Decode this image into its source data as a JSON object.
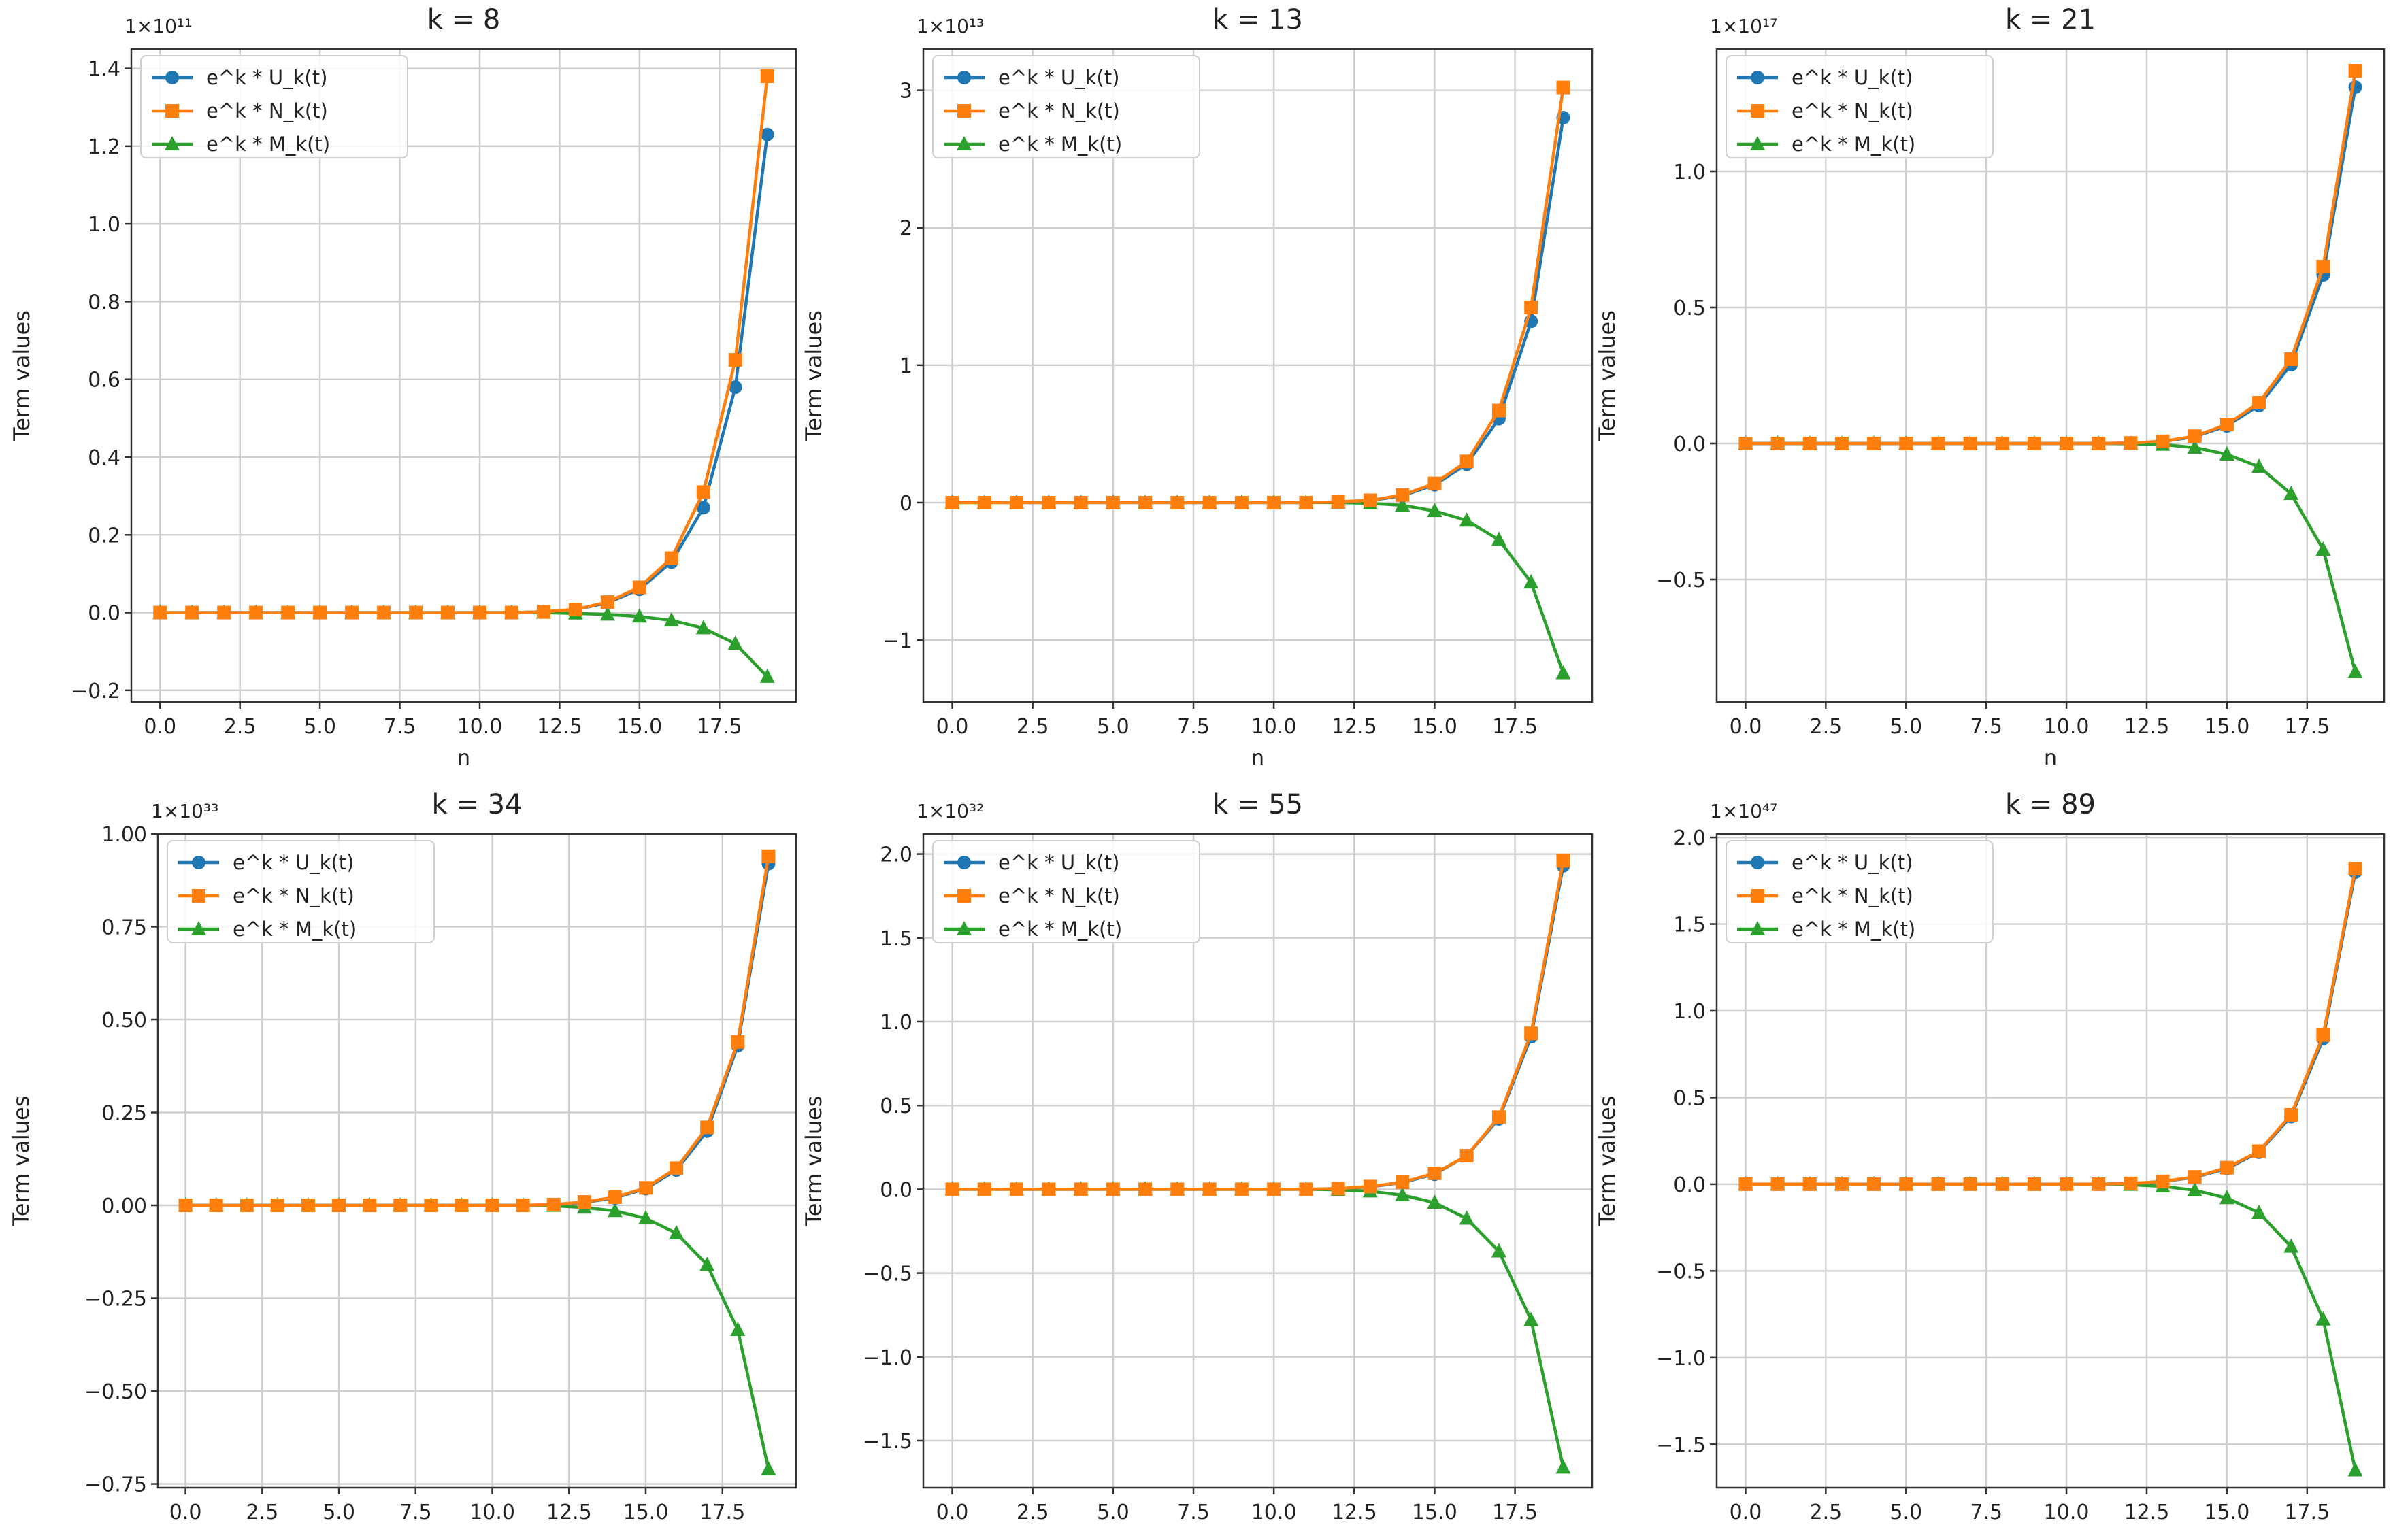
{
  "figure": {
    "ylabel": "Term values",
    "xlabel": "n",
    "legend": [
      "e^k * U_k(t)",
      "e^k * N_k(t)",
      "e^k * M_k(t)"
    ],
    "colors": {
      "U": "#1f77b4",
      "N": "#ff7f0e",
      "M": "#2ca02c"
    }
  },
  "chart_data": [
    {
      "type": "line",
      "title": "k = 8",
      "multiplier": "1×10¹¹",
      "xlabel": "n",
      "ylabel": "Term values",
      "xlim": [
        -0.9,
        19.9
      ],
      "ylim": [
        -0.23,
        1.45
      ],
      "xticks": [
        "0.0",
        "2.5",
        "5.0",
        "7.5",
        "10.0",
        "12.5",
        "15.0",
        "17.5"
      ],
      "yticks": [
        -0.2,
        0.0,
        0.2,
        0.4,
        0.6,
        0.8,
        1.0,
        1.2,
        1.4
      ],
      "ytick_labels": [
        "−0.2",
        "0.0",
        "0.2",
        "0.4",
        "0.6",
        "0.8",
        "1.0",
        "1.2",
        "1.4"
      ],
      "x": [
        0,
        1,
        2,
        3,
        4,
        5,
        6,
        7,
        8,
        9,
        10,
        11,
        12,
        13,
        14,
        15,
        16,
        17,
        18,
        19
      ],
      "series": [
        {
          "name": "e^k * U_k(t)",
          "values": [
            0,
            0,
            0,
            0,
            0,
            0,
            0,
            0,
            0,
            0,
            0,
            0,
            0.002,
            0.008,
            0.025,
            0.06,
            0.13,
            0.27,
            0.58,
            1.23
          ]
        },
        {
          "name": "e^k * N_k(t)",
          "values": [
            0,
            0,
            0,
            0,
            0,
            0,
            0,
            0,
            0,
            0,
            0,
            0,
            0.002,
            0.008,
            0.027,
            0.065,
            0.14,
            0.31,
            0.65,
            1.38
          ]
        },
        {
          "name": "e^k * M_k(t)",
          "values": [
            0,
            0,
            0,
            0,
            0,
            0,
            0,
            0,
            0,
            0,
            0,
            0,
            0,
            -0.002,
            -0.005,
            -0.01,
            -0.02,
            -0.04,
            -0.08,
            -0.165
          ]
        }
      ]
    },
    {
      "type": "line",
      "title": "k = 13",
      "multiplier": "1×10¹³",
      "xlabel": "n",
      "ylabel": "Term values",
      "xlim": [
        -0.9,
        19.9
      ],
      "ylim": [
        -1.45,
        3.3
      ],
      "xticks": [
        "0.0",
        "2.5",
        "5.0",
        "7.5",
        "10.0",
        "12.5",
        "15.0",
        "17.5"
      ],
      "yticks": [
        -1,
        0,
        1,
        2,
        3
      ],
      "ytick_labels": [
        "−1",
        "0",
        "1",
        "2",
        "3"
      ],
      "x": [
        0,
        1,
        2,
        3,
        4,
        5,
        6,
        7,
        8,
        9,
        10,
        11,
        12,
        13,
        14,
        15,
        16,
        17,
        18,
        19
      ],
      "series": [
        {
          "name": "e^k * U_k(t)",
          "values": [
            0,
            0,
            0,
            0,
            0,
            0,
            0,
            0,
            0,
            0,
            0,
            0,
            0.005,
            0.015,
            0.05,
            0.13,
            0.28,
            0.61,
            1.32,
            2.8
          ]
        },
        {
          "name": "e^k * N_k(t)",
          "values": [
            0,
            0,
            0,
            0,
            0,
            0,
            0,
            0,
            0,
            0,
            0,
            0,
            0.005,
            0.017,
            0.055,
            0.14,
            0.3,
            0.67,
            1.42,
            3.02
          ]
        },
        {
          "name": "e^k * M_k(t)",
          "values": [
            0,
            0,
            0,
            0,
            0,
            0,
            0,
            0,
            0,
            0,
            0,
            0,
            0,
            -0.005,
            -0.02,
            -0.06,
            -0.13,
            -0.27,
            -0.58,
            -1.24
          ]
        }
      ]
    },
    {
      "type": "line",
      "title": "k = 21",
      "multiplier": "1×10¹⁷",
      "xlabel": "n",
      "ylabel": "Term values",
      "xlim": [
        -0.9,
        19.9
      ],
      "ylim": [
        -0.95,
        1.45
      ],
      "xticks": [
        "0.0",
        "2.5",
        "5.0",
        "7.5",
        "10.0",
        "12.5",
        "15.0",
        "17.5"
      ],
      "yticks": [
        -0.5,
        0.0,
        0.5,
        1.0
      ],
      "ytick_labels": [
        "−0.5",
        "0.0",
        "0.5",
        "1.0"
      ],
      "x": [
        0,
        1,
        2,
        3,
        4,
        5,
        6,
        7,
        8,
        9,
        10,
        11,
        12,
        13,
        14,
        15,
        16,
        17,
        18,
        19
      ],
      "series": [
        {
          "name": "e^k * U_k(t)",
          "values": [
            0,
            0,
            0,
            0,
            0,
            0,
            0,
            0,
            0,
            0,
            0,
            0,
            0.002,
            0.007,
            0.025,
            0.065,
            0.14,
            0.29,
            0.62,
            1.31
          ]
        },
        {
          "name": "e^k * N_k(t)",
          "values": [
            0,
            0,
            0,
            0,
            0,
            0,
            0,
            0,
            0,
            0,
            0,
            0,
            0.002,
            0.008,
            0.027,
            0.07,
            0.15,
            0.31,
            0.65,
            1.37
          ]
        },
        {
          "name": "e^k * M_k(t)",
          "values": [
            0,
            0,
            0,
            0,
            0,
            0,
            0,
            0,
            0,
            0,
            0,
            0,
            -0.001,
            -0.004,
            -0.015,
            -0.04,
            -0.085,
            -0.185,
            -0.39,
            -0.84
          ]
        }
      ]
    },
    {
      "type": "line",
      "title": "k = 34",
      "multiplier": "1×10³³",
      "xlabel": "",
      "ylabel": "Term values",
      "xlim": [
        -0.9,
        19.9
      ],
      "ylim": [
        -0.76,
        1.0
      ],
      "xticks": [
        "0.0",
        "2.5",
        "5.0",
        "7.5",
        "10.0",
        "12.5",
        "15.0",
        "17.5"
      ],
      "yticks": [
        -0.75,
        -0.5,
        -0.25,
        0.0,
        0.25,
        0.5,
        0.75,
        1.0
      ],
      "ytick_labels": [
        "−0.75",
        "−0.50",
        "−0.25",
        "0.00",
        "0.25",
        "0.50",
        "0.75",
        "1.00"
      ],
      "x": [
        0,
        1,
        2,
        3,
        4,
        5,
        6,
        7,
        8,
        9,
        10,
        11,
        12,
        13,
        14,
        15,
        16,
        17,
        18,
        19
      ],
      "series": [
        {
          "name": "e^k * U_k(t)",
          "values": [
            0,
            0,
            0,
            0,
            0,
            0,
            0,
            0,
            0,
            0,
            0,
            0,
            0.002,
            0.008,
            0.02,
            0.045,
            0.095,
            0.2,
            0.43,
            0.92
          ]
        },
        {
          "name": "e^k * N_k(t)",
          "values": [
            0,
            0,
            0,
            0,
            0,
            0,
            0,
            0,
            0,
            0,
            0,
            0,
            0.002,
            0.009,
            0.022,
            0.047,
            0.1,
            0.21,
            0.44,
            0.94
          ]
        },
        {
          "name": "e^k * M_k(t)",
          "values": [
            0,
            0,
            0,
            0,
            0,
            0,
            0,
            0,
            0,
            0,
            0,
            0,
            -0.001,
            -0.006,
            -0.015,
            -0.035,
            -0.075,
            -0.16,
            -0.335,
            -0.71
          ]
        }
      ]
    },
    {
      "type": "line",
      "title": "k = 55",
      "multiplier": "1×10³²",
      "xlabel": "",
      "ylabel": "Term values",
      "xlim": [
        -0.9,
        19.9
      ],
      "ylim": [
        -1.78,
        2.12
      ],
      "xticks": [
        "0.0",
        "2.5",
        "5.0",
        "7.5",
        "10.0",
        "12.5",
        "15.0",
        "17.5"
      ],
      "yticks": [
        -1.5,
        -1.0,
        -0.5,
        0.0,
        0.5,
        1.0,
        1.5,
        2.0
      ],
      "ytick_labels": [
        "−1.5",
        "−1.0",
        "−0.5",
        "0.0",
        "0.5",
        "1.0",
        "1.5",
        "2.0"
      ],
      "x": [
        0,
        1,
        2,
        3,
        4,
        5,
        6,
        7,
        8,
        9,
        10,
        11,
        12,
        13,
        14,
        15,
        16,
        17,
        18,
        19
      ],
      "series": [
        {
          "name": "e^k * U_k(t)",
          "values": [
            0,
            0,
            0,
            0,
            0,
            0,
            0,
            0,
            0,
            0,
            0,
            0,
            0.004,
            0.015,
            0.04,
            0.09,
            0.2,
            0.42,
            0.91,
            1.93
          ]
        },
        {
          "name": "e^k * N_k(t)",
          "values": [
            0,
            0,
            0,
            0,
            0,
            0,
            0,
            0,
            0,
            0,
            0,
            0,
            0.004,
            0.016,
            0.042,
            0.095,
            0.2,
            0.43,
            0.93,
            1.96
          ]
        },
        {
          "name": "e^k * M_k(t)",
          "values": [
            0,
            0,
            0,
            0,
            0,
            0,
            0,
            0,
            0,
            0,
            0,
            0,
            -0.003,
            -0.012,
            -0.035,
            -0.08,
            -0.175,
            -0.37,
            -0.78,
            -1.66
          ]
        }
      ]
    },
    {
      "type": "line",
      "title": "k = 89",
      "multiplier": "1×10⁴⁷",
      "xlabel": "",
      "ylabel": "Term values",
      "xlim": [
        -0.9,
        19.9
      ],
      "ylim": [
        -1.75,
        2.02
      ],
      "xticks": [
        "0.0",
        "2.5",
        "5.0",
        "7.5",
        "10.0",
        "12.5",
        "15.0",
        "17.5"
      ],
      "yticks": [
        -1.5,
        -1.0,
        -0.5,
        0.0,
        0.5,
        1.0,
        1.5,
        2.0
      ],
      "ytick_labels": [
        "−1.5",
        "−1.0",
        "−0.5",
        "0.0",
        "0.5",
        "1.0",
        "1.5",
        "2.0"
      ],
      "x": [
        0,
        1,
        2,
        3,
        4,
        5,
        6,
        7,
        8,
        9,
        10,
        11,
        12,
        13,
        14,
        15,
        16,
        17,
        18,
        19
      ],
      "series": [
        {
          "name": "e^k * U_k(t)",
          "values": [
            0,
            0,
            0,
            0,
            0,
            0,
            0,
            0,
            0,
            0,
            0,
            0,
            0.004,
            0.015,
            0.04,
            0.09,
            0.185,
            0.39,
            0.84,
            1.8
          ]
        },
        {
          "name": "e^k * N_k(t)",
          "values": [
            0,
            0,
            0,
            0,
            0,
            0,
            0,
            0,
            0,
            0,
            0,
            0,
            0.004,
            0.016,
            0.042,
            0.095,
            0.19,
            0.4,
            0.86,
            1.82
          ]
        },
        {
          "name": "e^k * M_k(t)",
          "values": [
            0,
            0,
            0,
            0,
            0,
            0,
            0,
            0,
            0,
            0,
            0,
            0,
            -0.003,
            -0.012,
            -0.035,
            -0.08,
            -0.165,
            -0.36,
            -0.78,
            -1.65
          ]
        }
      ]
    }
  ]
}
